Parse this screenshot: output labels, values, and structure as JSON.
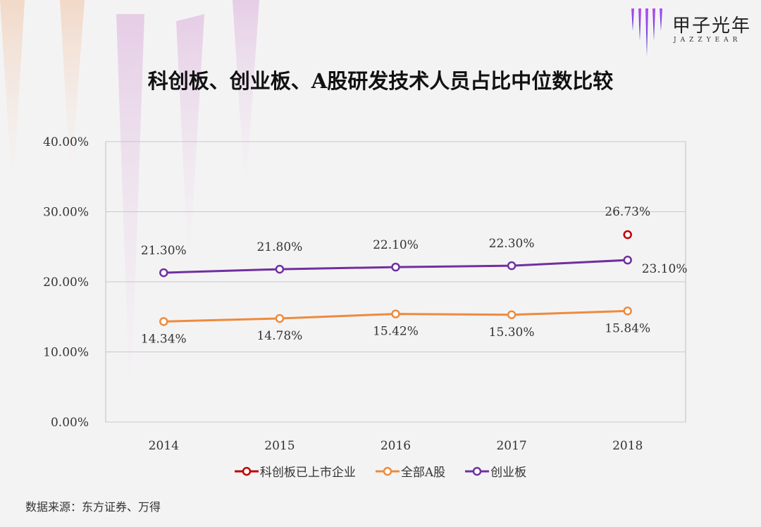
{
  "logo": {
    "text": "甲子光年",
    "subtext": "JAZZYEAR"
  },
  "title": "科创板、创业板、A股研发技术人员占比中位数比较",
  "source": "数据来源：东方证券、万得",
  "chart_data": {
    "type": "line",
    "title": "科创板、创业板、A股研发技术人员占比中位数比较",
    "categories": [
      "2014",
      "2015",
      "2016",
      "2017",
      "2018"
    ],
    "y_ticks": [
      "0.00%",
      "10.00%",
      "20.00%",
      "30.00%",
      "40.00%"
    ],
    "ylim": [
      0,
      40
    ],
    "grid": true,
    "legend_position": "bottom",
    "series": [
      {
        "name": "科创板已上市企业",
        "color": "#c00000",
        "values": [
          null,
          null,
          null,
          null,
          26.73
        ],
        "labels": [
          "",
          "",
          "",
          "",
          "26.73%"
        ]
      },
      {
        "name": "全部A股",
        "color": "#ed8b3d",
        "values": [
          14.34,
          14.78,
          15.42,
          15.3,
          15.84
        ],
        "labels": [
          "14.34%",
          "14.78%",
          "15.42%",
          "15.30%",
          "15.84%"
        ]
      },
      {
        "name": "创业板",
        "color": "#7030a0",
        "values": [
          21.3,
          21.8,
          22.1,
          22.3,
          23.1
        ],
        "labels": [
          "21.30%",
          "21.80%",
          "22.10%",
          "22.30%",
          "23.10%"
        ]
      }
    ]
  }
}
